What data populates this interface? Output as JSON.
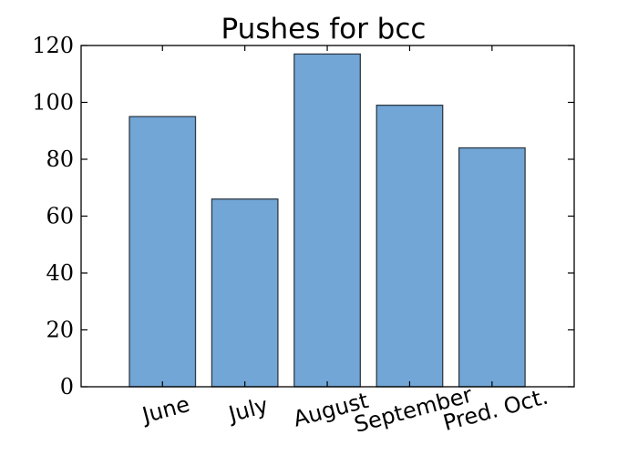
{
  "chart_data": {
    "type": "bar",
    "title": "Pushes for bcc",
    "categories": [
      "June",
      "July",
      "August",
      "September",
      "Pred. Oct."
    ],
    "values": [
      95,
      66,
      117,
      99,
      84
    ],
    "xlabel": "",
    "ylabel": "",
    "ylim": [
      0,
      120
    ],
    "yticks": [
      "0",
      "20",
      "40",
      "60",
      "80",
      "100",
      "120"
    ],
    "grid": false,
    "colors": {
      "bar_fill": "#72a6d6",
      "bar_edge": "#2f3b47"
    }
  }
}
